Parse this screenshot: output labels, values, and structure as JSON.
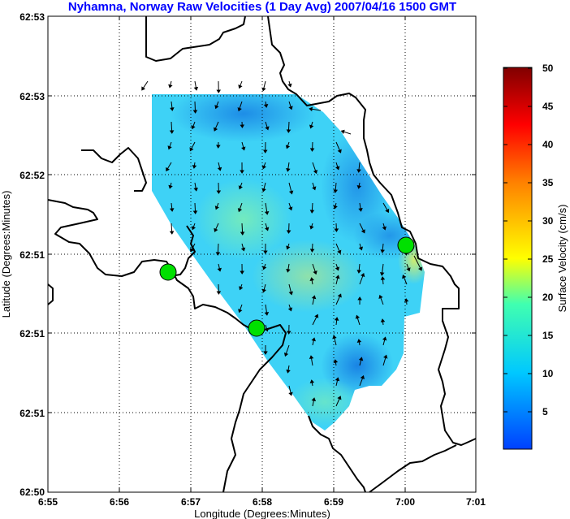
{
  "header": {
    "title": "Nyhamna, Norway Raw Velocities (1 Day Avg) 2007/04/16 1500 GMT"
  },
  "axes": {
    "xlabel": "Longitude (Degrees:Minutes)",
    "ylabel": "Latitude (Degrees:Minutes)",
    "x_ticks": [
      "6:55",
      "6:56",
      "6:57",
      "6:58",
      "6:59",
      "7:00",
      "7:01"
    ],
    "y_ticks": [
      "62:53",
      "62:53",
      "62:52",
      "62:51",
      "62:51",
      "62:51",
      "62:50"
    ]
  },
  "colorbar": {
    "label": "Surface Velocity (cm/s)",
    "ticks": [
      "50",
      "45",
      "40",
      "35",
      "30",
      "25",
      "20",
      "15",
      "10",
      "5"
    ],
    "range": [
      0,
      50
    ],
    "colors": [
      "#0000ff",
      "#00ffff",
      "#ffff00",
      "#ff0000",
      "#800000"
    ]
  },
  "chart_data": {
    "type": "map",
    "title": "Nyhamna, Norway Raw Velocities (1 Day Avg) 2007/04/16 1500 GMT",
    "xlabel": "Longitude (Degrees:Minutes)",
    "ylabel": "Latitude (Degrees:Minutes)",
    "x_ticks": [
      "6:55",
      "6:56",
      "6:57",
      "6:58",
      "6:59",
      "7:00",
      "7:01"
    ],
    "y_ticks": [
      "62:53",
      "62:53",
      "62:52",
      "62:51",
      "62:51",
      "62:51",
      "62:50"
    ],
    "colorbar_label": "Surface Velocity (cm/s)",
    "colorbar_range": [
      0,
      50
    ],
    "grid": true,
    "radar_sites": 3,
    "site_color": "#00ff00",
    "coastline_color": "#000000"
  }
}
